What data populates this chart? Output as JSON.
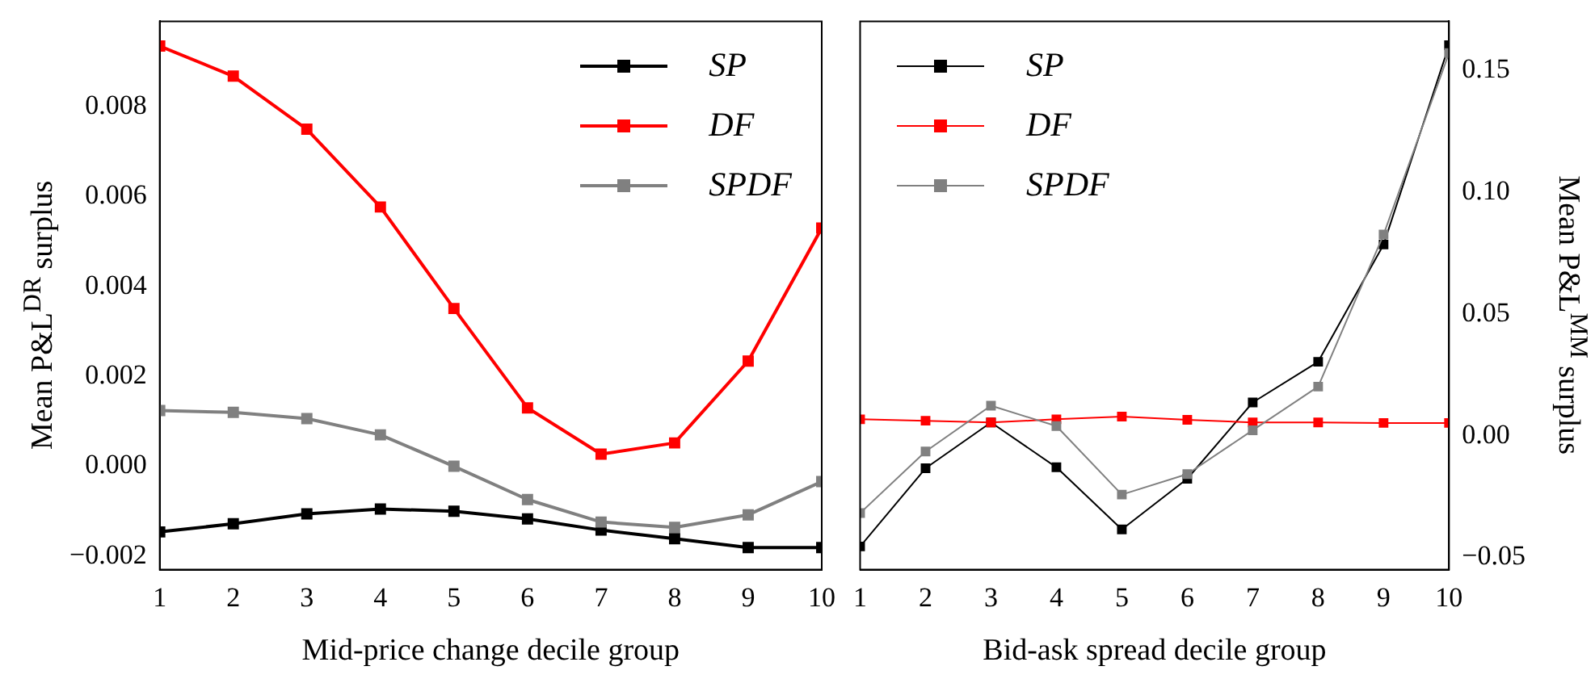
{
  "chart_data": [
    {
      "type": "line",
      "xlabel": "Mid-price change decile group",
      "ylabel": "Mean P&L$^{DR}$ surplus",
      "x": [
        1,
        2,
        3,
        4,
        5,
        6,
        7,
        8,
        9,
        10
      ],
      "series": [
        {
          "name": "SP",
          "color": "#000000",
          "values": [
            -0.00146,
            -0.00128,
            -0.00106,
            -0.00095,
            -0.001,
            -0.00117,
            -0.00142,
            -0.00161,
            -0.00181,
            -0.00181
          ]
        },
        {
          "name": "DF",
          "color": "#ff0000",
          "values": [
            0.00935,
            0.00868,
            0.0075,
            0.00577,
            0.00351,
            0.0013,
            0.00027,
            0.00052,
            0.00234,
            0.0053
          ]
        },
        {
          "name": "SPDF",
          "color": "#808080",
          "values": [
            0.00124,
            0.0012,
            0.00106,
            0.0007,
            0,
            -0.00074,
            -0.00124,
            -0.00136,
            -0.00108,
            -0.00034
          ]
        }
      ],
      "xlim": [
        1,
        10
      ],
      "xticks": [
        1,
        2,
        3,
        4,
        5,
        6,
        7,
        8,
        9,
        10
      ],
      "ylim": [
        -0.0023,
        0.0099
      ],
      "yticks": [
        {
          "value": -0.002,
          "label": "−0.002"
        },
        {
          "value": 0,
          "label": "0.000"
        },
        {
          "value": 0.002,
          "label": "0.002"
        },
        {
          "value": 0.004,
          "label": "0.004"
        },
        {
          "value": 0.006,
          "label": "0.006"
        },
        {
          "value": 0.008,
          "label": "0.008"
        }
      ],
      "marker": "square",
      "grid": false,
      "legend": "top right"
    },
    {
      "type": "line",
      "xlabel": "Bid-ask spread decile group",
      "y2label": "Mean P&L$^{MM}$ surplus",
      "x": [
        1,
        2,
        3,
        4,
        5,
        6,
        7,
        8,
        9,
        10
      ],
      "series": [
        {
          "name": "SP",
          "color": "#000000",
          "axis": "y2",
          "values": [
            -0.0455,
            -0.0134,
            0.0054,
            -0.013,
            -0.0385,
            -0.0177,
            0.0136,
            0.0303,
            0.0784,
            0.1602
          ]
        },
        {
          "name": "DF",
          "color": "#ff0000",
          "axis": "y2",
          "values": [
            0.0067,
            0.0061,
            0.0054,
            0.0067,
            0.0078,
            0.0065,
            0.0054,
            0.0054,
            0.0052,
            0.0052
          ]
        },
        {
          "name": "SPDF",
          "color": "#808080",
          "axis": "y2",
          "values": [
            -0.0318,
            -0.0065,
            0.0123,
            0.0039,
            -0.0242,
            -0.0158,
            0.0022,
            0.0201,
            0.0825,
            0.157
          ]
        }
      ],
      "xlim": [
        1,
        10
      ],
      "xticks": [
        1,
        2,
        3,
        4,
        5,
        6,
        7,
        8,
        9,
        10
      ],
      "y2lim": [
        -0.055,
        0.17
      ],
      "y2ticks": [
        {
          "value": -0.05,
          "label": "−0.05"
        },
        {
          "value": 0,
          "label": "0.00"
        },
        {
          "value": 0.05,
          "label": "0.05"
        },
        {
          "value": 0.1,
          "label": "0.10"
        },
        {
          "value": 0.15,
          "label": "0.15"
        }
      ],
      "marker": "square",
      "grid": false,
      "legend": "top left"
    }
  ]
}
